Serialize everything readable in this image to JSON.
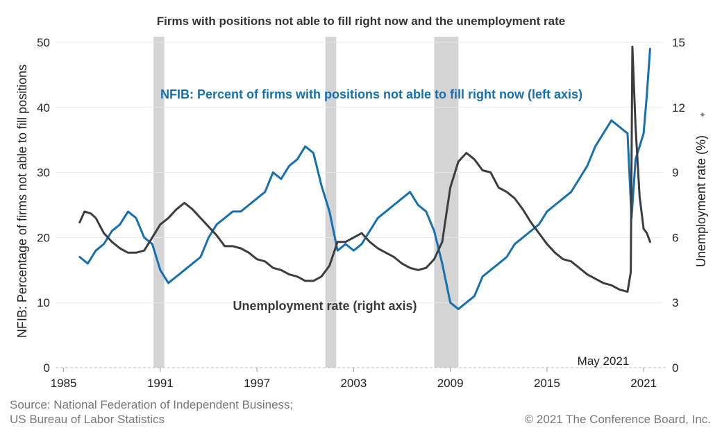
{
  "chart_data": {
    "type": "line",
    "title": "Firms with positions not able to fill right now and the unemployment rate",
    "ylabel_left": "NFIB: Percentage of firms not able to fill positions",
    "ylabel_right": "Unemployment rate (%)",
    "xlim": [
      1984.5,
      2022.2
    ],
    "ylim_left": [
      0,
      50
    ],
    "ylim_right": [
      0,
      15
    ],
    "x_ticks": [
      1985,
      1991,
      1997,
      2003,
      2009,
      2015,
      2021
    ],
    "x_tick_labels": [
      "1985",
      "1991",
      "1997",
      "2003",
      "2009",
      "2015",
      "2021"
    ],
    "y_ticks_left": [
      0,
      10,
      20,
      30,
      40,
      50
    ],
    "y_ticks_right": [
      0,
      3,
      6,
      9,
      12,
      15
    ],
    "grid": "horizontal",
    "latest_label": "May 2021",
    "recessions": [
      [
        1990.58,
        1991.25
      ],
      [
        2001.25,
        2001.92
      ],
      [
        2008.0,
        2009.5
      ]
    ],
    "series": [
      {
        "name": "NFIB: Percent of firms with positions not able to fill right now (left axis)",
        "axis": "left",
        "color": "#1470b0",
        "x": [
          1986.0,
          1986.5,
          1987.0,
          1987.5,
          1988.0,
          1988.5,
          1989.0,
          1989.5,
          1990.0,
          1990.5,
          1991.0,
          1991.5,
          1992.0,
          1992.5,
          1993.0,
          1993.5,
          1994.0,
          1994.5,
          1995.0,
          1995.5,
          1996.0,
          1996.5,
          1997.0,
          1997.5,
          1998.0,
          1998.5,
          1999.0,
          1999.5,
          2000.0,
          2000.5,
          2001.0,
          2001.5,
          2002.0,
          2002.5,
          2003.0,
          2003.5,
          2004.0,
          2004.5,
          2005.0,
          2005.5,
          2006.0,
          2006.5,
          2007.0,
          2007.5,
          2008.0,
          2008.5,
          2009.0,
          2009.5,
          2010.0,
          2010.5,
          2011.0,
          2011.5,
          2012.0,
          2012.5,
          2013.0,
          2013.5,
          2014.0,
          2014.5,
          2015.0,
          2015.5,
          2016.0,
          2016.5,
          2017.0,
          2017.5,
          2018.0,
          2018.5,
          2019.0,
          2019.5,
          2020.0,
          2020.25,
          2020.5,
          2020.75,
          2021.0,
          2021.2,
          2021.4
        ],
        "values": [
          17,
          16,
          18,
          19,
          21,
          22,
          24,
          23,
          20,
          19,
          15,
          13,
          14,
          15,
          16,
          17,
          20,
          22,
          23,
          24,
          24,
          25,
          26,
          27,
          30,
          29,
          31,
          32,
          34,
          33,
          28,
          24,
          18,
          19,
          18,
          19,
          21,
          23,
          24,
          25,
          26,
          27,
          25,
          24,
          21,
          16,
          10,
          9,
          10,
          11,
          14,
          15,
          16,
          17,
          19,
          20,
          21,
          22,
          24,
          25,
          26,
          27,
          29,
          31,
          34,
          36,
          38,
          37,
          36,
          23,
          32,
          34,
          36,
          42,
          49
        ]
      },
      {
        "name": "Unemployment rate (right axis)",
        "axis": "right",
        "color": "#3a3d42",
        "x": [
          1986.0,
          1986.3,
          1986.7,
          1987.0,
          1987.5,
          1988.0,
          1988.5,
          1989.0,
          1989.5,
          1990.0,
          1990.5,
          1991.0,
          1991.5,
          1992.0,
          1992.5,
          1993.0,
          1993.5,
          1994.0,
          1994.5,
          1995.0,
          1995.5,
          1996.0,
          1996.5,
          1997.0,
          1997.5,
          1998.0,
          1998.5,
          1999.0,
          1999.5,
          2000.0,
          2000.5,
          2001.0,
          2001.5,
          2002.0,
          2002.5,
          2003.0,
          2003.5,
          2004.0,
          2004.5,
          2005.0,
          2005.5,
          2006.0,
          2006.5,
          2007.0,
          2007.5,
          2008.0,
          2008.5,
          2009.0,
          2009.5,
          2010.0,
          2010.5,
          2011.0,
          2011.5,
          2012.0,
          2012.5,
          2013.0,
          2013.5,
          2014.0,
          2014.5,
          2015.0,
          2015.5,
          2016.0,
          2016.5,
          2017.0,
          2017.5,
          2018.0,
          2018.5,
          2019.0,
          2019.5,
          2020.0,
          2020.2,
          2020.3,
          2020.5,
          2020.75,
          2021.0,
          2021.2,
          2021.4
        ],
        "values": [
          6.7,
          7.2,
          7.1,
          6.9,
          6.2,
          5.8,
          5.5,
          5.3,
          5.3,
          5.4,
          6.0,
          6.6,
          6.9,
          7.3,
          7.6,
          7.3,
          6.9,
          6.5,
          6.1,
          5.6,
          5.6,
          5.5,
          5.3,
          5.0,
          4.9,
          4.6,
          4.5,
          4.3,
          4.2,
          4.0,
          4.0,
          4.2,
          4.7,
          5.8,
          5.8,
          6.0,
          6.2,
          5.8,
          5.5,
          5.3,
          5.1,
          4.8,
          4.6,
          4.5,
          4.6,
          5.0,
          5.8,
          8.3,
          9.5,
          9.9,
          9.6,
          9.1,
          9.0,
          8.3,
          8.1,
          7.8,
          7.3,
          6.7,
          6.2,
          5.7,
          5.3,
          5.0,
          4.9,
          4.6,
          4.3,
          4.1,
          3.9,
          3.8,
          3.6,
          3.5,
          4.4,
          14.8,
          11.1,
          7.9,
          6.4,
          6.2,
          5.8
        ]
      }
    ],
    "annotations": {
      "blue_label": "NFIB: Percent of firms with positions not able to fill right now (left axis)",
      "dark_label": "Unemployment rate (right axis)"
    },
    "recession_color": "#d4d4d4"
  },
  "footer": {
    "source_line1": "Source: National Federation of Independent Business;",
    "source_line2": "US Bureau of Labor Statistics",
    "copyright": "© 2021 The Conference Board, Inc."
  },
  "icons": {
    "right_label_marker": "pin-icon"
  }
}
